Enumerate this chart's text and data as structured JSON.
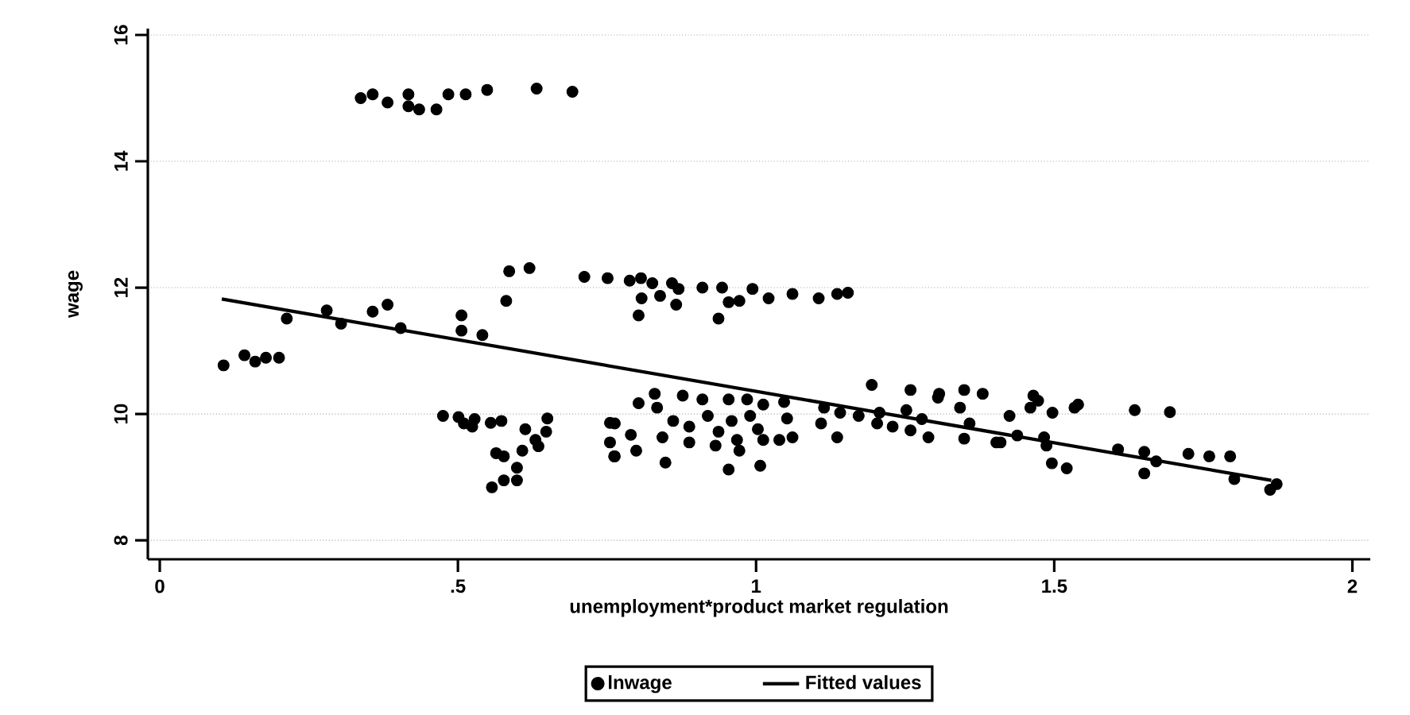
{
  "chart_data": {
    "type": "scatter",
    "xlabel": "unemployment*product market regulation",
    "ylabel": "wage",
    "xlim": [
      -0.02,
      2.03
    ],
    "ylim": [
      7.7,
      16.1
    ],
    "xticks": [
      0,
      {
        "value": 0.5,
        "label": ".5"
      },
      1,
      {
        "value": 1.5,
        "label": "1.5"
      },
      2
    ],
    "yticks": [
      8,
      10,
      12,
      14,
      16
    ],
    "grid": "y",
    "legend": "bottom",
    "series": [
      {
        "name": "lnwage",
        "marker": "circle",
        "color": "#000000",
        "x": [
          0.337,
          0.357,
          0.382,
          0.417,
          0.417,
          0.435,
          0.464,
          0.484,
          0.513,
          0.549,
          0.632,
          0.692,
          0.586,
          0.62,
          0.712,
          0.751,
          0.788,
          0.807,
          0.826,
          0.859,
          0.87,
          0.91,
          0.943,
          0.994,
          1.021,
          0.972,
          0.954,
          0.937,
          0.839,
          0.866,
          0.808,
          0.803,
          0.581,
          1.061,
          1.105,
          1.136,
          1.154,
          0.107,
          0.142,
          0.16,
          0.178,
          0.2,
          0.213,
          0.28,
          0.304,
          0.357,
          0.382,
          0.404,
          0.506,
          0.506,
          0.541,
          0.475,
          0.501,
          0.51,
          0.528,
          0.524,
          0.555,
          0.573,
          0.613,
          0.65,
          0.648,
          0.63,
          0.635,
          0.608,
          0.564,
          0.577,
          0.599,
          0.599,
          0.577,
          0.557,
          0.755,
          0.755,
          0.762,
          0.763,
          0.79,
          0.763,
          0.803,
          0.83,
          0.834,
          0.799,
          0.843,
          0.861,
          0.877,
          0.888,
          0.888,
          0.848,
          0.91,
          0.919,
          0.937,
          0.932,
          0.954,
          0.959,
          0.968,
          0.972,
          0.954,
          0.985,
          0.99,
          1.003,
          1.012,
          1.012,
          1.039,
          1.047,
          1.052,
          1.061,
          1.007,
          1.114,
          1.109,
          1.136,
          1.141,
          1.172,
          1.194,
          1.207,
          1.203,
          1.229,
          1.252,
          1.259,
          1.278,
          1.259,
          1.289,
          1.305,
          1.307,
          1.342,
          1.349,
          1.38,
          1.349,
          1.358,
          1.403,
          1.425,
          1.41,
          1.438,
          1.465,
          1.473,
          1.46,
          1.497,
          1.483,
          1.487,
          1.496,
          1.521,
          1.534,
          1.54,
          1.635,
          1.694,
          1.607,
          1.651,
          1.671,
          1.651,
          1.725,
          1.76,
          1.795,
          1.802,
          1.862,
          1.873
        ],
        "values": [
          15.0,
          15.06,
          14.93,
          15.06,
          14.87,
          14.82,
          14.82,
          15.06,
          15.06,
          15.13,
          15.15,
          15.1,
          12.26,
          12.31,
          12.17,
          12.15,
          12.11,
          12.15,
          12.07,
          12.07,
          11.98,
          12.0,
          12.0,
          11.98,
          11.83,
          11.79,
          11.77,
          11.51,
          11.87,
          11.73,
          11.83,
          11.56,
          11.79,
          11.9,
          11.83,
          11.9,
          11.92,
          10.77,
          10.93,
          10.83,
          10.89,
          10.89,
          11.51,
          11.64,
          11.43,
          11.62,
          11.73,
          11.36,
          11.56,
          11.32,
          11.25,
          9.97,
          9.95,
          9.85,
          9.92,
          9.8,
          9.86,
          9.89,
          9.76,
          9.93,
          9.72,
          9.59,
          9.49,
          9.42,
          9.38,
          9.33,
          9.15,
          8.95,
          8.95,
          8.84,
          9.86,
          9.55,
          9.33,
          9.85,
          9.67,
          9.33,
          10.17,
          10.32,
          10.1,
          9.42,
          9.63,
          9.89,
          10.29,
          9.8,
          9.55,
          9.23,
          10.23,
          9.97,
          9.72,
          9.5,
          10.23,
          9.89,
          9.59,
          9.42,
          9.12,
          10.23,
          9.97,
          9.76,
          10.15,
          9.59,
          9.59,
          10.19,
          9.93,
          9.63,
          9.18,
          10.1,
          9.85,
          9.63,
          10.02,
          9.97,
          10.46,
          10.02,
          9.85,
          9.8,
          10.06,
          10.38,
          9.92,
          9.74,
          9.63,
          10.26,
          10.32,
          10.1,
          10.38,
          10.32,
          9.61,
          9.85,
          9.55,
          9.97,
          9.55,
          9.66,
          10.29,
          10.21,
          10.1,
          10.02,
          9.63,
          9.5,
          9.22,
          9.14,
          10.1,
          10.15,
          10.06,
          10.03,
          9.44,
          9.4,
          9.25,
          9.06,
          9.37,
          9.33,
          9.33,
          8.97,
          8.8,
          8.89
        ]
      },
      {
        "name": "Fitted values",
        "type": "line",
        "marker": "none",
        "color": "#000000",
        "x": [
          0.104,
          1.864
        ],
        "values": [
          11.82,
          8.95
        ]
      }
    ]
  }
}
